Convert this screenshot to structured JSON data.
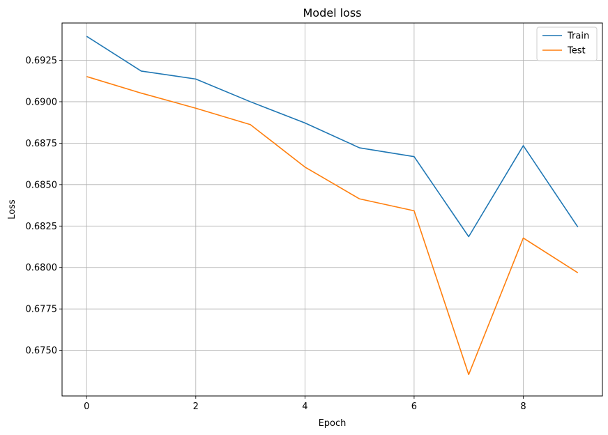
{
  "chart_data": {
    "type": "line",
    "title": "Model loss",
    "xlabel": "Epoch",
    "ylabel": "Loss",
    "xlim": [
      -0.45,
      9.45
    ],
    "ylim": [
      0.67225,
      0.69475
    ],
    "xticks": [
      0,
      2,
      4,
      6,
      8
    ],
    "xtick_labels": [
      "0",
      "2",
      "4",
      "6",
      "8"
    ],
    "yticks": [
      0.675,
      0.6775,
      0.68,
      0.6825,
      0.685,
      0.6875,
      0.69,
      0.6925
    ],
    "ytick_labels": [
      "0.6750",
      "0.6775",
      "0.6800",
      "0.6825",
      "0.6850",
      "0.6875",
      "0.6900",
      "0.6925"
    ],
    "grid": true,
    "legend_position": "top-right",
    "x": [
      0,
      1,
      2,
      3,
      4,
      5,
      6,
      7,
      8,
      9
    ],
    "series": [
      {
        "name": "Train",
        "color": "#1f77b4",
        "values": [
          0.69395,
          0.69185,
          0.69137,
          0.69,
          0.68872,
          0.68722,
          0.68669,
          0.68186,
          0.68735,
          0.68244
        ]
      },
      {
        "name": "Test",
        "color": "#ff7f0e",
        "values": [
          0.69152,
          0.69052,
          0.68961,
          0.68862,
          0.68606,
          0.68414,
          0.68342,
          0.67354,
          0.68178,
          0.67968
        ]
      }
    ]
  }
}
